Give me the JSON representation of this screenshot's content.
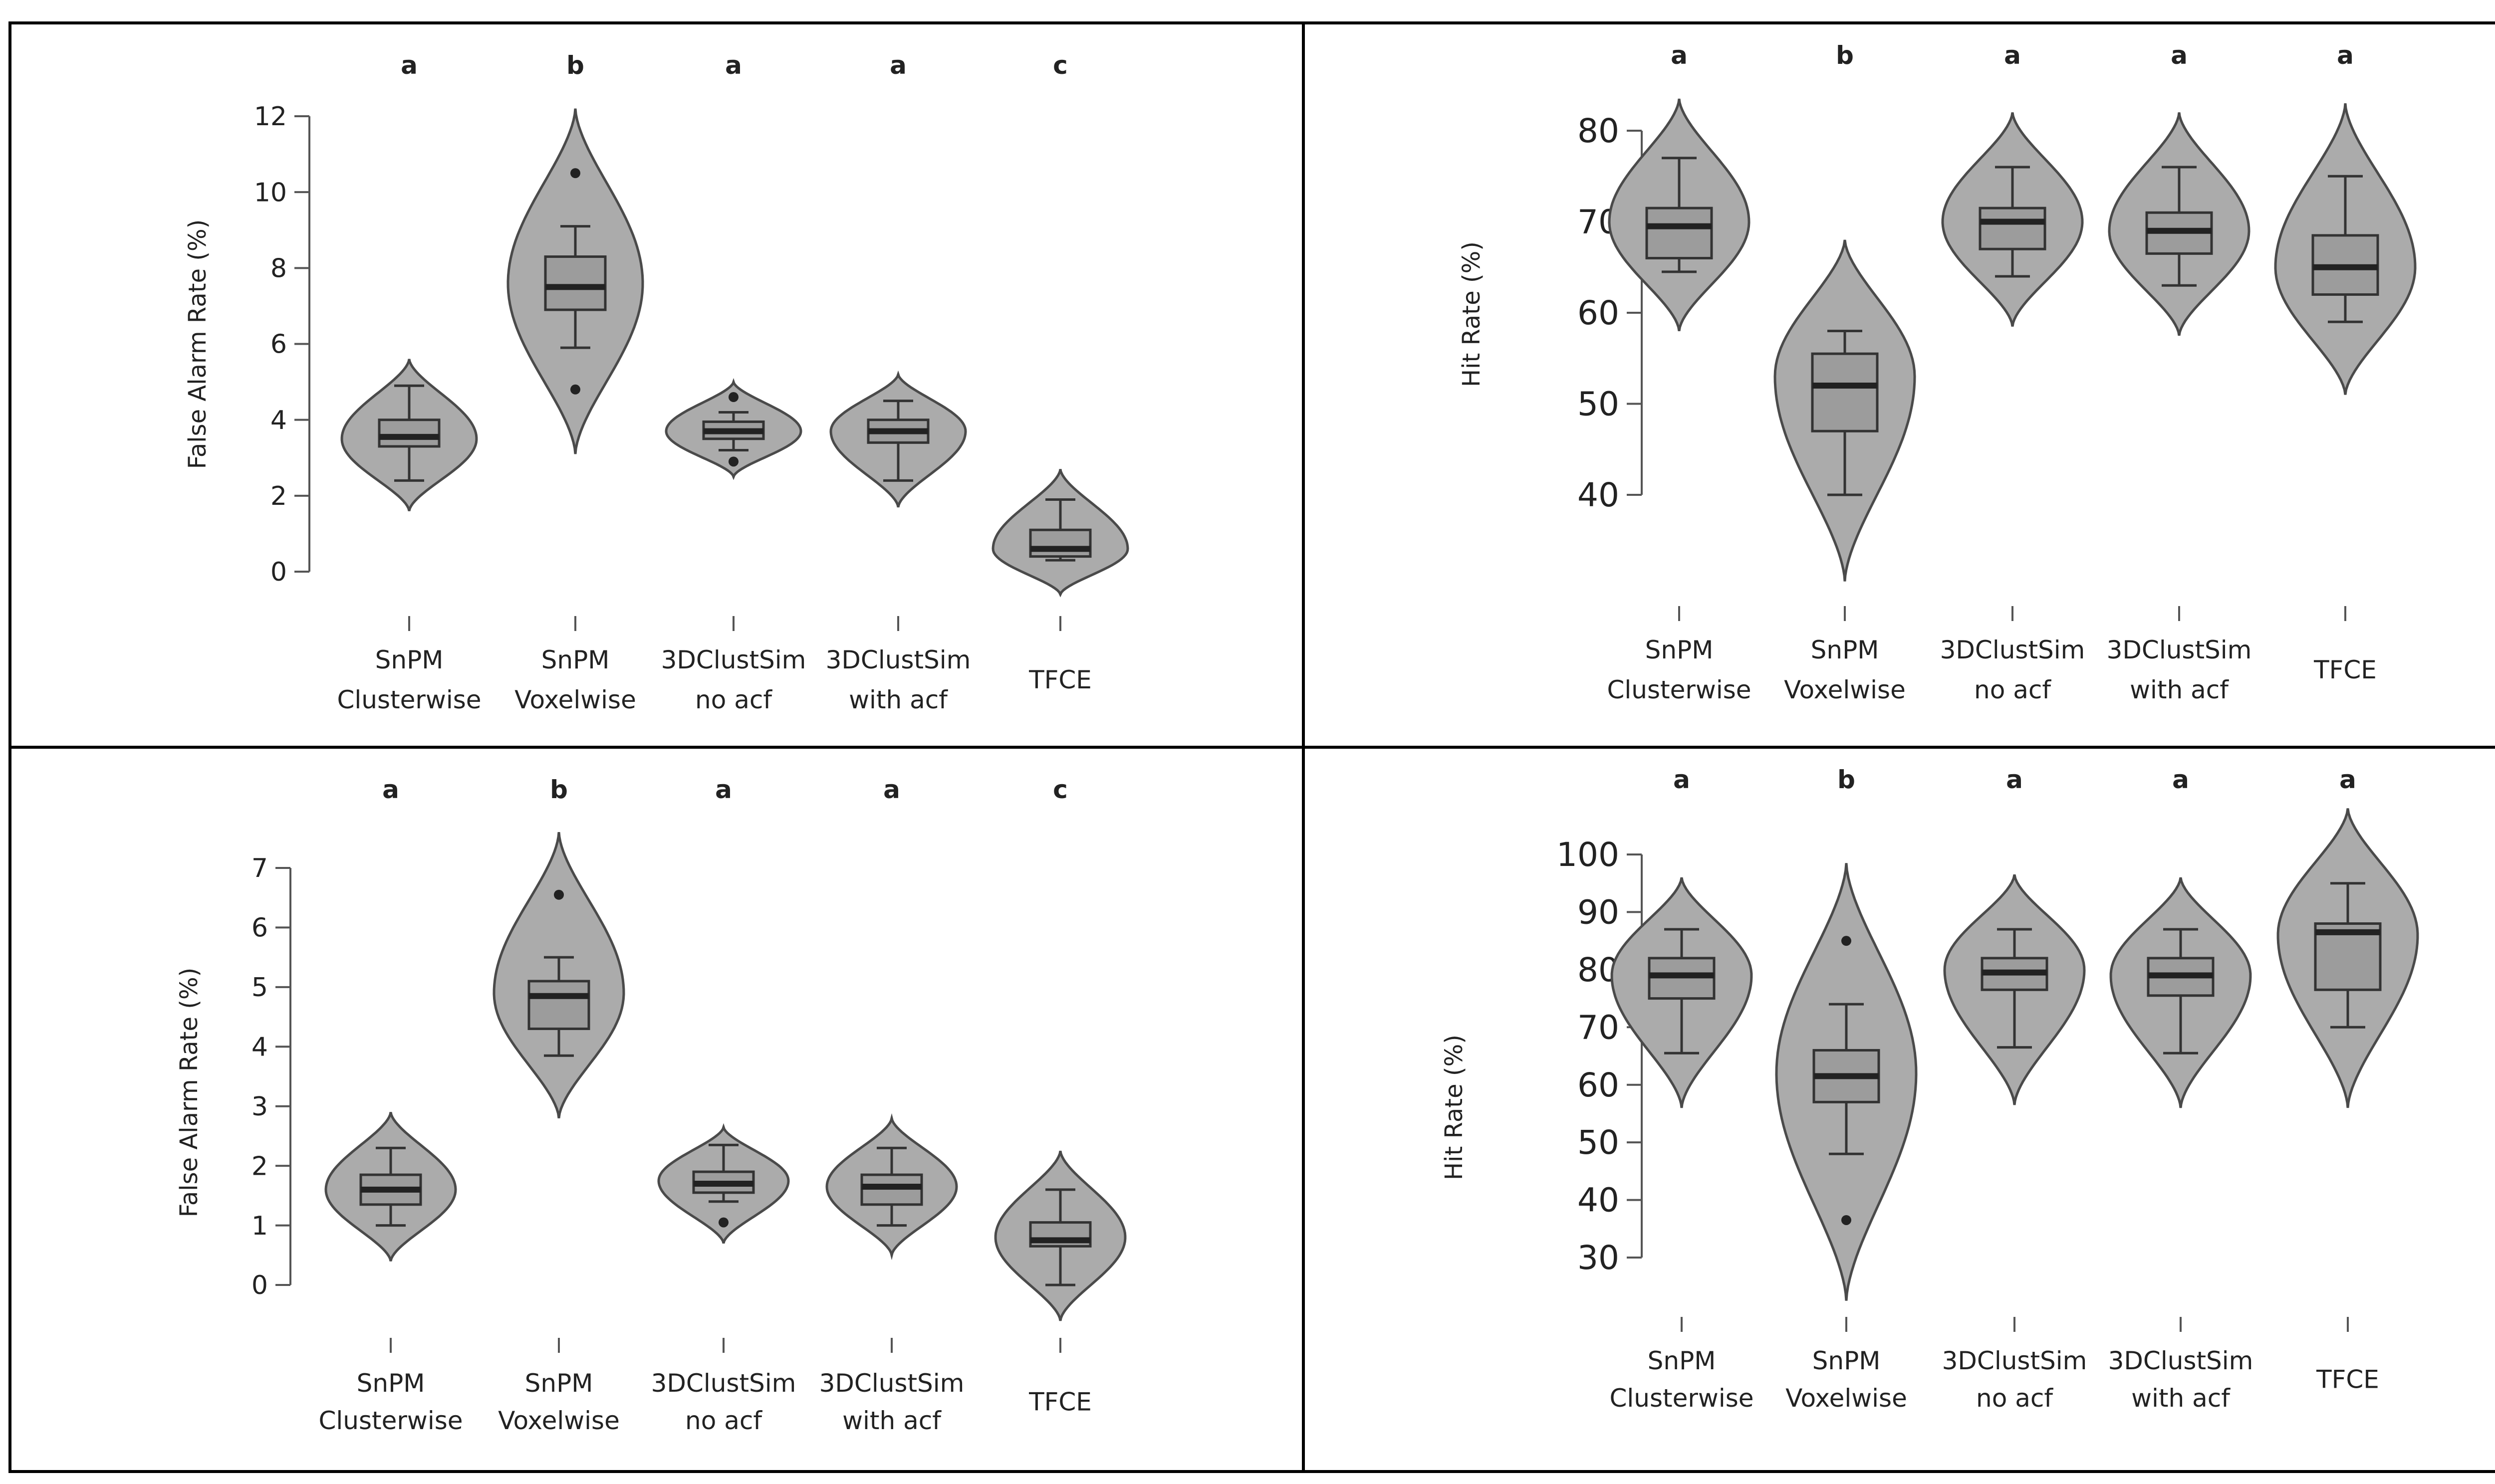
{
  "chart_data": [
    {
      "type": "violin",
      "ylabel": "False Alarm Rate (%)",
      "ylim": [
        0,
        12
      ],
      "yticks": [
        0,
        2,
        4,
        6,
        8,
        10,
        12
      ],
      "categories": [
        [
          "SnPM",
          "Clusterwise"
        ],
        [
          "SnPM",
          "Voxelwise"
        ],
        [
          "3DClustSim",
          "no acf"
        ],
        [
          "3DClustSim",
          "with acf"
        ],
        [
          "TFCE"
        ]
      ],
      "letters": [
        "a",
        "b",
        "a",
        "a",
        "c"
      ],
      "groups": [
        {
          "min": 2.4,
          "q1": 3.3,
          "median": 3.55,
          "q3": 4.0,
          "max": 4.9,
          "vmin": 1.6,
          "vmax": 5.6,
          "mode": 3.5,
          "outliers": []
        },
        {
          "min": 5.9,
          "q1": 6.9,
          "median": 7.5,
          "q3": 8.3,
          "max": 9.1,
          "vmin": 3.1,
          "vmax": 12.2,
          "mode": 7.6,
          "outliers": [
            4.8,
            10.5
          ]
        },
        {
          "min": 3.2,
          "q1": 3.5,
          "median": 3.7,
          "q3": 3.95,
          "max": 4.2,
          "vmin": 2.5,
          "vmax": 5.0,
          "mode": 3.7,
          "outliers": [
            2.9,
            4.6
          ]
        },
        {
          "min": 2.4,
          "q1": 3.4,
          "median": 3.7,
          "q3": 4.0,
          "max": 4.5,
          "vmin": 1.7,
          "vmax": 5.2,
          "mode": 3.7,
          "outliers": []
        },
        {
          "min": 0.3,
          "q1": 0.4,
          "median": 0.6,
          "q3": 1.1,
          "max": 1.9,
          "vmin": -0.6,
          "vmax": 2.7,
          "mode": 0.6,
          "outliers": []
        }
      ]
    },
    {
      "type": "violin",
      "ylabel": "Hit Rate (%)",
      "ylim": [
        40,
        80
      ],
      "yticks": [
        40,
        50,
        60,
        70,
        80
      ],
      "categories": [
        [
          "SnPM",
          "Clusterwise"
        ],
        [
          "SnPM",
          "Voxelwise"
        ],
        [
          "3DClustSim",
          "no acf"
        ],
        [
          "3DClustSim",
          "with acf"
        ],
        [
          "TFCE"
        ]
      ],
      "letters": [
        "a",
        "b",
        "a",
        "a",
        "a"
      ],
      "groups": [
        {
          "min": 64.5,
          "q1": 66,
          "median": 69.5,
          "q3": 71.5,
          "max": 77,
          "vmin": 58,
          "vmax": 83.5,
          "mode": 70,
          "outliers": []
        },
        {
          "min": 40,
          "q1": 47,
          "median": 52,
          "q3": 55.5,
          "max": 58,
          "vmin": 30.5,
          "vmax": 68,
          "mode": 53,
          "outliers": []
        },
        {
          "min": 64,
          "q1": 67,
          "median": 70,
          "q3": 71.5,
          "max": 76,
          "vmin": 58.5,
          "vmax": 82,
          "mode": 70,
          "outliers": []
        },
        {
          "min": 63,
          "q1": 66.5,
          "median": 69,
          "q3": 71,
          "max": 76,
          "vmin": 57.5,
          "vmax": 82,
          "mode": 69,
          "outliers": []
        },
        {
          "min": 59,
          "q1": 62,
          "median": 65,
          "q3": 68.5,
          "max": 75,
          "vmin": 51,
          "vmax": 83,
          "mode": 65,
          "outliers": []
        }
      ]
    },
    {
      "type": "violin",
      "ylabel": "False Alarm Rate (%)",
      "ylim": [
        0,
        7
      ],
      "yticks": [
        0,
        1,
        2,
        3,
        4,
        5,
        6,
        7
      ],
      "categories": [
        [
          "SnPM",
          "Clusterwise"
        ],
        [
          "SnPM",
          "Voxelwise"
        ],
        [
          "3DClustSim",
          "no acf"
        ],
        [
          "3DClustSim",
          "with acf"
        ],
        [
          "TFCE"
        ]
      ],
      "letters": [
        "a",
        "b",
        "a",
        "a",
        "c"
      ],
      "groups": [
        {
          "min": 1.0,
          "q1": 1.35,
          "median": 1.6,
          "q3": 1.85,
          "max": 2.3,
          "vmin": 0.4,
          "vmax": 2.9,
          "mode": 1.6,
          "outliers": []
        },
        {
          "min": 3.85,
          "q1": 4.3,
          "median": 4.85,
          "q3": 5.1,
          "max": 5.5,
          "vmin": 2.8,
          "vmax": 7.6,
          "mode": 4.9,
          "outliers": [
            6.55
          ]
        },
        {
          "min": 1.4,
          "q1": 1.55,
          "median": 1.7,
          "q3": 1.9,
          "max": 2.35,
          "vmin": 0.7,
          "vmax": 2.65,
          "mode": 1.75,
          "outliers": [
            1.05
          ]
        },
        {
          "min": 1.0,
          "q1": 1.35,
          "median": 1.65,
          "q3": 1.85,
          "max": 2.3,
          "vmin": 0.5,
          "vmax": 2.8,
          "mode": 1.65,
          "outliers": []
        },
        {
          "min": 0.0,
          "q1": 0.65,
          "median": 0.75,
          "q3": 1.05,
          "max": 1.6,
          "vmin": -0.6,
          "vmax": 2.25,
          "mode": 0.8,
          "outliers": []
        }
      ]
    },
    {
      "type": "violin",
      "ylabel": "Hit Rate (%)",
      "ylim": [
        30,
        100
      ],
      "yticks": [
        30,
        40,
        50,
        60,
        70,
        80,
        90,
        100
      ],
      "categories": [
        [
          "SnPM",
          "Clusterwise"
        ],
        [
          "SnPM",
          "Voxelwise"
        ],
        [
          "3DClustSim",
          "no acf"
        ],
        [
          "3DClustSim",
          "with acf"
        ],
        [
          "TFCE"
        ]
      ],
      "letters": [
        "a",
        "b",
        "a",
        "a",
        "a"
      ],
      "groups": [
        {
          "min": 65.5,
          "q1": 75,
          "median": 79,
          "q3": 82,
          "max": 87,
          "vmin": 56,
          "vmax": 96,
          "mode": 79,
          "outliers": []
        },
        {
          "min": 48,
          "q1": 57,
          "median": 61.5,
          "q3": 66,
          "max": 74,
          "vmin": 22.5,
          "vmax": 98.5,
          "mode": 62,
          "outliers": [
            36.5,
            85
          ]
        },
        {
          "min": 66.5,
          "q1": 76.5,
          "median": 79.5,
          "q3": 82,
          "max": 87,
          "vmin": 56.5,
          "vmax": 96.5,
          "mode": 80,
          "outliers": []
        },
        {
          "min": 65.5,
          "q1": 75.5,
          "median": 79,
          "q3": 82,
          "max": 87,
          "vmin": 56,
          "vmax": 96,
          "mode": 79,
          "outliers": []
        },
        {
          "min": 70,
          "q1": 76.5,
          "median": 86.5,
          "q3": 88,
          "max": 95,
          "vmin": 56,
          "vmax": 108,
          "mode": 86,
          "outliers": []
        }
      ]
    }
  ]
}
